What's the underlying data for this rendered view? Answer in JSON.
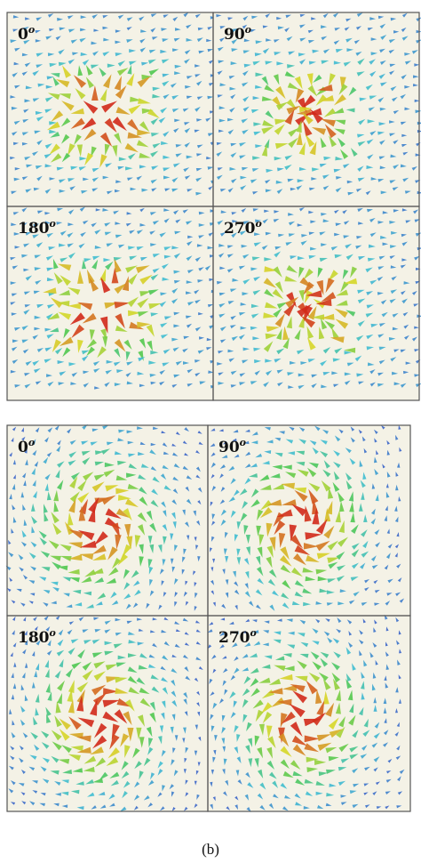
{
  "figure": {
    "groups": [
      {
        "panels": [
          {
            "angle": "0",
            "sup": "o"
          },
          {
            "angle": "90",
            "sup": "o"
          },
          {
            "angle": "180",
            "sup": "o"
          },
          {
            "angle": "270",
            "sup": "o"
          }
        ]
      },
      {
        "panels": [
          {
            "angle": "0",
            "sup": "o"
          },
          {
            "angle": "90",
            "sup": "o"
          },
          {
            "angle": "180",
            "sup": "o"
          },
          {
            "angle": "270",
            "sup": "o"
          }
        ]
      }
    ],
    "caption": "(b)"
  }
}
